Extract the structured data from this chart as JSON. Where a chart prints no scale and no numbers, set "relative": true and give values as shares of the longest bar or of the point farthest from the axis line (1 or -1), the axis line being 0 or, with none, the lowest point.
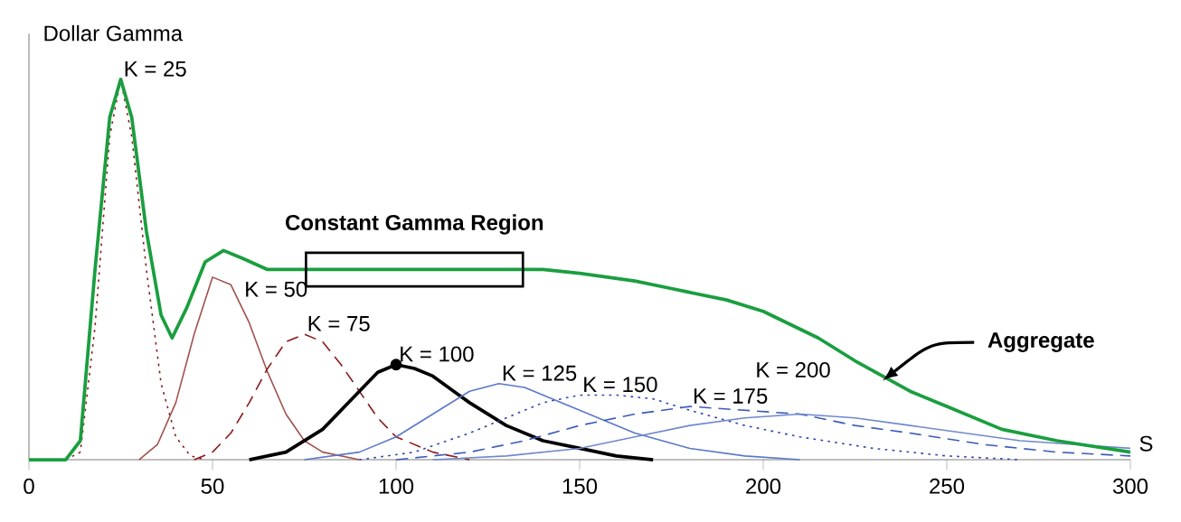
{
  "chart_data": {
    "type": "line",
    "xlabel": "S",
    "ylabel": "Dollar Gamma",
    "relative": true,
    "xlim": [
      0,
      300
    ],
    "xticks": [
      0,
      50,
      100,
      150,
      200,
      250,
      300
    ],
    "grid": false,
    "annotations": [
      {
        "text": "Constant Gamma Region",
        "x": 105,
        "y": 0.5
      },
      "Aggregate"
    ],
    "series": [
      {
        "name": "K = 25",
        "color": "#8b1a1a",
        "line_style": "dotted",
        "x": [
          10,
          14,
          18,
          22,
          25,
          28,
          32,
          36,
          40,
          44,
          48
        ],
        "values": [
          0,
          0.02,
          0.35,
          0.85,
          1.0,
          0.85,
          0.5,
          0.2,
          0.06,
          0.01,
          0
        ]
      },
      {
        "name": "K = 50",
        "color": "#a0524d",
        "line_style": "solid",
        "x": [
          30,
          35,
          40,
          45,
          50,
          55,
          60,
          65,
          70,
          75,
          80,
          90
        ],
        "values": [
          0,
          0.04,
          0.15,
          0.33,
          0.48,
          0.46,
          0.36,
          0.23,
          0.12,
          0.05,
          0.02,
          0
        ]
      },
      {
        "name": "K = 75",
        "color": "#8b1a1a",
        "line_style": "dashed",
        "x": [
          45,
          50,
          55,
          60,
          65,
          70,
          75,
          80,
          85,
          90,
          95,
          100,
          110,
          120
        ],
        "values": [
          0,
          0.02,
          0.07,
          0.15,
          0.24,
          0.31,
          0.33,
          0.31,
          0.25,
          0.18,
          0.11,
          0.06,
          0.02,
          0
        ]
      },
      {
        "name": "K = 100",
        "color": "#000000",
        "line_style": "solid",
        "x": [
          60,
          70,
          80,
          90,
          95,
          100,
          105,
          110,
          120,
          130,
          140,
          150,
          160,
          170
        ],
        "values": [
          0,
          0.02,
          0.08,
          0.18,
          0.23,
          0.25,
          0.24,
          0.22,
          0.15,
          0.09,
          0.05,
          0.03,
          0.01,
          0
        ]
      },
      {
        "name": "K = 125",
        "color": "#5a78c8",
        "line_style": "solid",
        "x": [
          75,
          90,
          100,
          110,
          120,
          128,
          135,
          145,
          155,
          165,
          180,
          195,
          210
        ],
        "values": [
          0,
          0.02,
          0.06,
          0.12,
          0.18,
          0.2,
          0.19,
          0.15,
          0.11,
          0.07,
          0.03,
          0.01,
          0
        ]
      },
      {
        "name": "K = 150",
        "color": "#2a44b0",
        "line_style": "dotted",
        "x": [
          90,
          105,
          120,
          130,
          140,
          150,
          160,
          170,
          180,
          195,
          210,
          230,
          250,
          270
        ],
        "values": [
          0,
          0.02,
          0.07,
          0.11,
          0.15,
          0.17,
          0.17,
          0.16,
          0.13,
          0.09,
          0.06,
          0.03,
          0.01,
          0
        ]
      },
      {
        "name": "K = 175",
        "color": "#3a5bb8",
        "line_style": "dashed",
        "x": [
          100,
          120,
          135,
          150,
          165,
          180,
          195,
          210,
          225,
          240,
          260,
          280,
          300
        ],
        "values": [
          0,
          0.02,
          0.05,
          0.09,
          0.12,
          0.14,
          0.13,
          0.12,
          0.09,
          0.07,
          0.04,
          0.02,
          0.01
        ]
      },
      {
        "name": "K = 200",
        "color": "#7088cc",
        "line_style": "solid",
        "x": [
          110,
          130,
          150,
          165,
          180,
          195,
          210,
          225,
          240,
          255,
          270,
          285,
          300
        ],
        "values": [
          0,
          0.01,
          0.03,
          0.06,
          0.09,
          0.11,
          0.12,
          0.11,
          0.09,
          0.07,
          0.05,
          0.04,
          0.03
        ]
      },
      {
        "color": "#1a9e3f",
        "line_style": "solid",
        "x": [
          0,
          10,
          14,
          18,
          22,
          25,
          28,
          32,
          36,
          39,
          43,
          48,
          53,
          58,
          65,
          75,
          100,
          125,
          140,
          150,
          165,
          175,
          190,
          200,
          215,
          225,
          240,
          250,
          265,
          280,
          300
        ],
        "values": [
          0,
          0,
          0.05,
          0.5,
          0.9,
          1.0,
          0.9,
          0.6,
          0.38,
          0.32,
          0.4,
          0.52,
          0.55,
          0.53,
          0.5,
          0.5,
          0.5,
          0.5,
          0.5,
          0.49,
          0.47,
          0.45,
          0.42,
          0.39,
          0.32,
          0.26,
          0.18,
          0.14,
          0.08,
          0.05,
          0.02
        ]
      },
      {
        "type": "scatter",
        "color": "#000000",
        "marker": "circle",
        "x": [
          100
        ],
        "values": [
          0.25
        ]
      }
    ]
  }
}
